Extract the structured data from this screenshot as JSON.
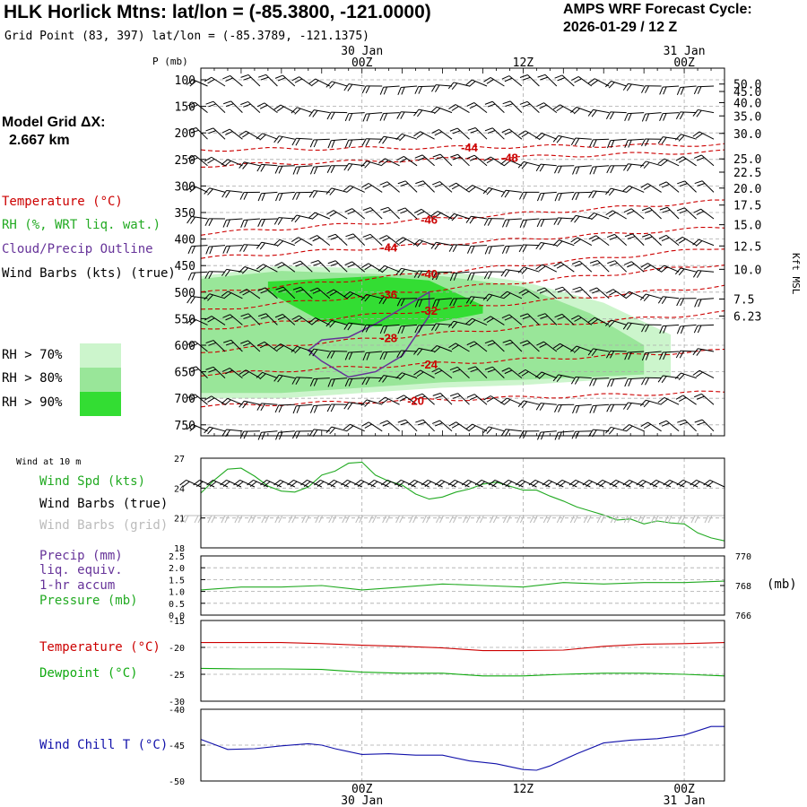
{
  "header": {
    "title": "HLK Horlick Mtns:  lat/lon = (-85.3800, -121.0000)",
    "subtitle": "Grid Point (83, 397) lat/lon = (-85.3789, -121.1375)",
    "cycle_label": "AMPS WRF Forecast Cycle:",
    "cycle_value": "2026-01-29 / 12  Z",
    "grid_label": "Model Grid ΔX:",
    "grid_value": "2.667 km"
  },
  "colors": {
    "temperature": "#cc0000",
    "rh": "#22aa22",
    "cloud": "#663399",
    "dewpoint": "#11aa11",
    "windchill": "#1111aa",
    "grid": "#aaaaaa",
    "rh70": "#ccf5cc",
    "rh80": "#99e699",
    "rh90": "#33dd33"
  },
  "legend": {
    "temperature": "Temperature (°C)",
    "rh": "RH (%, WRT liq. wat.)",
    "cloud": "Cloud/Precip Outline",
    "wind": "Wind Barbs (kts) (true)",
    "rh70": "RH > 70%",
    "rh80": "RH > 80%",
    "rh90": "RH > 90%",
    "wind10m": "Wind at 10 m",
    "windspd": "Wind Spd (kts)",
    "windbarbs_true": "Wind Barbs (true)",
    "windbarbs_grid": "Wind Barbs (grid)",
    "precip1": "Precip (mm)",
    "precip2": "liq. equiv.",
    "precip3": "1-hr accum",
    "pressure": "Pressure (mb)",
    "pressure_unit": "(mb)",
    "temp": "Temperature (°C)",
    "dewpoint": "Dewpoint (°C)",
    "windchill": "Wind Chill T (°C)"
  },
  "chart_data": [
    {
      "type": "heatmap",
      "name": "upper-air cross-section",
      "time_ticks": [
        {
          "label": "00Z",
          "date": "30 Jan",
          "hour": 12
        },
        {
          "label": "12Z",
          "date": "",
          "hour": 24
        },
        {
          "label": "00Z",
          "date": "31 Jan",
          "hour": 36
        }
      ],
      "xlim": [
        0,
        39
      ],
      "pressure_label": "P (mb)",
      "pressure_ticks": [
        100,
        150,
        200,
        250,
        300,
        350,
        400,
        450,
        500,
        550,
        600,
        650,
        700,
        750
      ],
      "height_label": "Kft MSL",
      "height_ticks": [
        "50.0",
        "45.0",
        "40.0",
        "35.0",
        "30.0",
        "25.0",
        "22.5",
        "20.0",
        "17.5",
        "15.0",
        "12.5",
        "10.0",
        "7.5",
        "6.23"
      ],
      "height_tick_pressures": [
        108,
        122,
        143,
        168,
        201,
        249,
        274,
        304,
        336,
        373,
        413,
        457,
        513,
        545
      ],
      "temperature_contours": [
        {
          "label": "-44",
          "pressure_start": 232,
          "pressure_end": 222,
          "label_hour": 20
        },
        {
          "label": "-48",
          "pressure_start": 262,
          "pressure_end": 235,
          "label_hour": 23
        },
        {
          "label": "-46",
          "pressure_start": 390,
          "pressure_end": 328,
          "label_hour": 17
        },
        {
          "label": "-44",
          "pressure_start": 436,
          "pressure_end": 378,
          "label_hour": 14
        },
        {
          "label": "-40",
          "pressure_start": 502,
          "pressure_end": 416,
          "label_hour": 17
        },
        {
          "label": "-36",
          "pressure_start": 535,
          "pressure_end": 447,
          "label_hour": 14
        },
        {
          "label": "-32",
          "pressure_start": 570,
          "pressure_end": 488,
          "label_hour": 17
        },
        {
          "label": "-28",
          "pressure_start": 612,
          "pressure_end": 538,
          "label_hour": 14
        },
        {
          "label": "-24",
          "pressure_start": 655,
          "pressure_end": 610,
          "label_hour": 17
        },
        {
          "label": "-20",
          "pressure_start": 715,
          "pressure_end": 688,
          "label_hour": 16
        }
      ],
      "rh_regions": [
        {
          "level": 70,
          "hours": [
            0,
            6,
            12,
            18,
            24,
            30,
            35
          ],
          "p_top": [
            470,
            450,
            455,
            460,
            480,
            520,
            580
          ],
          "p_bottom": [
            700,
            700,
            690,
            680,
            675,
            665,
            660
          ]
        },
        {
          "level": 80,
          "hours": [
            0,
            6,
            12,
            18,
            24,
            29,
            33
          ],
          "p_top": [
            475,
            460,
            465,
            470,
            490,
            540,
            600
          ],
          "p_bottom": [
            690,
            690,
            680,
            670,
            665,
            660,
            655
          ]
        },
        {
          "level": 90,
          "hours": [
            5,
            9,
            13,
            17,
            21
          ],
          "p_top": [
            480,
            475,
            470,
            478,
            525
          ],
          "p_bottom": [
            500,
            555,
            565,
            560,
            540
          ]
        }
      ],
      "cloud_outline": {
        "hours": [
          8,
          9,
          11,
          13,
          15,
          16,
          17,
          17,
          15,
          13,
          11,
          9,
          8
        ],
        "pressures": [
          610,
          590,
          585,
          560,
          530,
          515,
          500,
          545,
          620,
          650,
          660,
          630,
          610
        ]
      }
    },
    {
      "type": "line",
      "name": "wind speed 10 m",
      "ylabel": "Wind Spd (kts)",
      "ylim": [
        18,
        27
      ],
      "yticks": [
        18,
        21,
        24,
        27
      ],
      "hours": [
        0,
        1,
        2,
        3,
        4,
        5,
        6,
        7,
        8,
        9,
        10,
        11,
        12,
        13,
        14,
        15,
        16,
        17,
        18,
        19,
        20,
        21,
        22,
        23,
        24,
        25,
        26,
        27,
        28,
        29,
        30,
        31,
        32,
        33,
        34,
        35,
        36,
        37,
        38,
        39
      ],
      "values": [
        23.5,
        24.8,
        25.9,
        26.0,
        25.2,
        24.2,
        23.7,
        23.6,
        24.1,
        25.3,
        25.7,
        26.5,
        26.6,
        25.3,
        24.7,
        24.3,
        23.4,
        22.9,
        23.1,
        23.6,
        23.9,
        24.4,
        24.6,
        24.2,
        23.8,
        23.8,
        23.2,
        22.7,
        22.1,
        21.7,
        21.3,
        20.8,
        20.9,
        20.4,
        20.7,
        20.5,
        20.4,
        19.5,
        19.0,
        18.7
      ]
    },
    {
      "type": "line",
      "name": "precip and pressure",
      "precip_ylim": [
        0,
        2.5
      ],
      "precip_yticks": [
        0.0,
        0.5,
        1.0,
        1.5,
        2.0,
        2.5
      ],
      "pressure_ylim": [
        766,
        770
      ],
      "pressure_yticks": [
        766,
        768,
        770
      ],
      "hours": [
        0,
        3,
        6,
        9,
        12,
        15,
        18,
        21,
        24,
        27,
        30,
        33,
        36,
        39
      ],
      "pressure": [
        767.7,
        767.9,
        767.9,
        768.0,
        767.7,
        767.9,
        768.1,
        768.0,
        767.9,
        768.2,
        768.1,
        768.2,
        768.2,
        768.3
      ]
    },
    {
      "type": "line",
      "name": "temperature and dewpoint",
      "ylim": [
        -30,
        -15
      ],
      "yticks": [
        -30,
        -25,
        -20,
        -15
      ],
      "hours": [
        0,
        3,
        6,
        9,
        12,
        15,
        18,
        21,
        24,
        27,
        30,
        33,
        36,
        39
      ],
      "temperature": [
        -19.1,
        -19.1,
        -19.1,
        -19.3,
        -19.6,
        -19.8,
        -20.1,
        -20.6,
        -20.6,
        -20.5,
        -19.8,
        -19.4,
        -19.3,
        -19.1
      ],
      "dewpoint": [
        -23.9,
        -24.0,
        -24.0,
        -24.1,
        -24.6,
        -24.8,
        -24.8,
        -25.3,
        -25.3,
        -25.0,
        -24.8,
        -24.8,
        -25.0,
        -25.3
      ]
    },
    {
      "type": "line",
      "name": "wind chill",
      "ylim": [
        -50,
        -40
      ],
      "yticks": [
        -50,
        -45,
        -40
      ],
      "hours": [
        0,
        2,
        4,
        6,
        8,
        9,
        10,
        12,
        14,
        16,
        18,
        20,
        21,
        22,
        24,
        25,
        26,
        28,
        30,
        32,
        34,
        36,
        38,
        39
      ],
      "windchill": [
        -44.2,
        -45.6,
        -45.5,
        -45.1,
        -44.8,
        -45.0,
        -45.5,
        -46.3,
        -46.2,
        -46.4,
        -46.4,
        -47.2,
        -47.4,
        -47.6,
        -48.4,
        -48.5,
        -47.9,
        -46.2,
        -44.7,
        -44.3,
        -44.1,
        -43.6,
        -42.4,
        -42.4
      ]
    }
  ]
}
